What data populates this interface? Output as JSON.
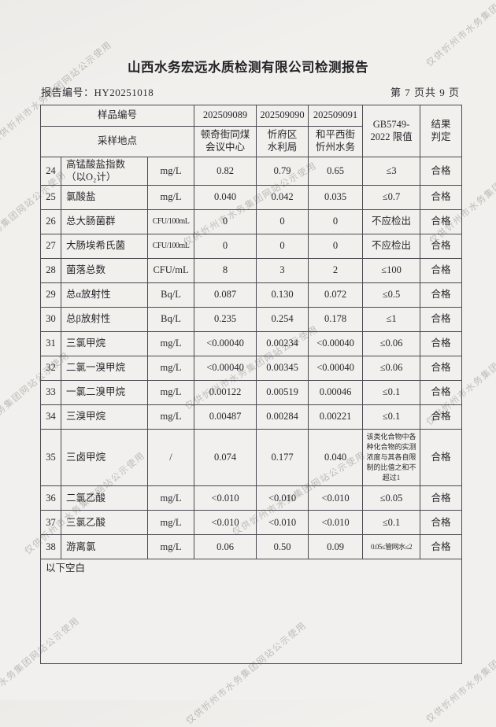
{
  "watermark": {
    "text": "仅供忻州市水务集团网站公示使用"
  },
  "header": {
    "title": "山西水务宏远水质检测有限公司检测报告",
    "report_no": "报告编号：HY20251018",
    "page_info": "第 7 页共 9 页"
  },
  "table": {
    "header": {
      "sample_no_label": "样品编号",
      "sample_site_label": "采样地点",
      "sample_ids": [
        "202509089",
        "202509090",
        "202509091"
      ],
      "sample_sites": [
        "顿奇街同煤\n会议中心",
        "忻府区\n水利局",
        "和平西街\n忻州水务"
      ],
      "limit_label": "GB5749-\n2022 限值",
      "result_label": "结果\n判定"
    },
    "rows": [
      {
        "no": "24",
        "name": "高锰酸盐指数\n（以O₂计）",
        "unit": "mg/L",
        "v1": "0.82",
        "v2": "0.79",
        "v3": "0.65",
        "limit": "≤3",
        "result": "合格"
      },
      {
        "no": "25",
        "name": "氯酸盐",
        "unit": "mg/L",
        "v1": "0.040",
        "v2": "0.042",
        "v3": "0.035",
        "limit": "≤0.7",
        "result": "合格"
      },
      {
        "no": "26",
        "name": "总大肠菌群",
        "unit": "CFU/100mL",
        "v1": "0",
        "v2": "0",
        "v3": "0",
        "limit": "不应检出",
        "result": "合格"
      },
      {
        "no": "27",
        "name": "大肠埃希氏菌",
        "unit": "CFU/100mL",
        "v1": "0",
        "v2": "0",
        "v3": "0",
        "limit": "不应检出",
        "result": "合格"
      },
      {
        "no": "28",
        "name": "菌落总数",
        "unit": "CFU/mL",
        "v1": "8",
        "v2": "3",
        "v3": "2",
        "limit": "≤100",
        "result": "合格"
      },
      {
        "no": "29",
        "name": "总α放射性",
        "unit": "Bq/L",
        "v1": "0.087",
        "v2": "0.130",
        "v3": "0.072",
        "limit": "≤0.5",
        "result": "合格"
      },
      {
        "no": "30",
        "name": "总β放射性",
        "unit": "Bq/L",
        "v1": "0.235",
        "v2": "0.254",
        "v3": "0.178",
        "limit": "≤1",
        "result": "合格"
      },
      {
        "no": "31",
        "name": "三氯甲烷",
        "unit": "mg/L",
        "v1": "<0.00040",
        "v2": "0.00234",
        "v3": "<0.00040",
        "limit": "≤0.06",
        "result": "合格"
      },
      {
        "no": "32",
        "name": "二氯一溴甲烷",
        "unit": "mg/L",
        "v1": "<0.00040",
        "v2": "0.00345",
        "v3": "<0.00040",
        "limit": "≤0.06",
        "result": "合格"
      },
      {
        "no": "33",
        "name": "一氯二溴甲烷",
        "unit": "mg/L",
        "v1": "0.00122",
        "v2": "0.00519",
        "v3": "0.00046",
        "limit": "≤0.1",
        "result": "合格"
      },
      {
        "no": "34",
        "name": "三溴甲烷",
        "unit": "mg/L",
        "v1": "0.00487",
        "v2": "0.00284",
        "v3": "0.00221",
        "limit": "≤0.1",
        "result": "合格"
      },
      {
        "no": "35",
        "name": "三卤甲烷",
        "unit": "/",
        "v1": "0.074",
        "v2": "0.177",
        "v3": "0.040",
        "limit": "该类化合物中各种化合物的实测浓度与其各自限制的比值之和不超过1",
        "result": "合格"
      },
      {
        "no": "36",
        "name": "二氯乙酸",
        "unit": "mg/L",
        "v1": "<0.010",
        "v2": "<0.010",
        "v3": "<0.010",
        "limit": "≤0.05",
        "result": "合格"
      },
      {
        "no": "37",
        "name": "三氯乙酸",
        "unit": "mg/L",
        "v1": "<0.010",
        "v2": "<0.010",
        "v3": "<0.010",
        "limit": "≤0.1",
        "result": "合格"
      },
      {
        "no": "38",
        "name": "游离氯",
        "unit": "mg/L",
        "v1": "0.06",
        "v2": "0.50",
        "v3": "0.09",
        "limit": "0.05≤管网水≤2",
        "result": "合格"
      }
    ],
    "footer_note": "以下空白"
  }
}
